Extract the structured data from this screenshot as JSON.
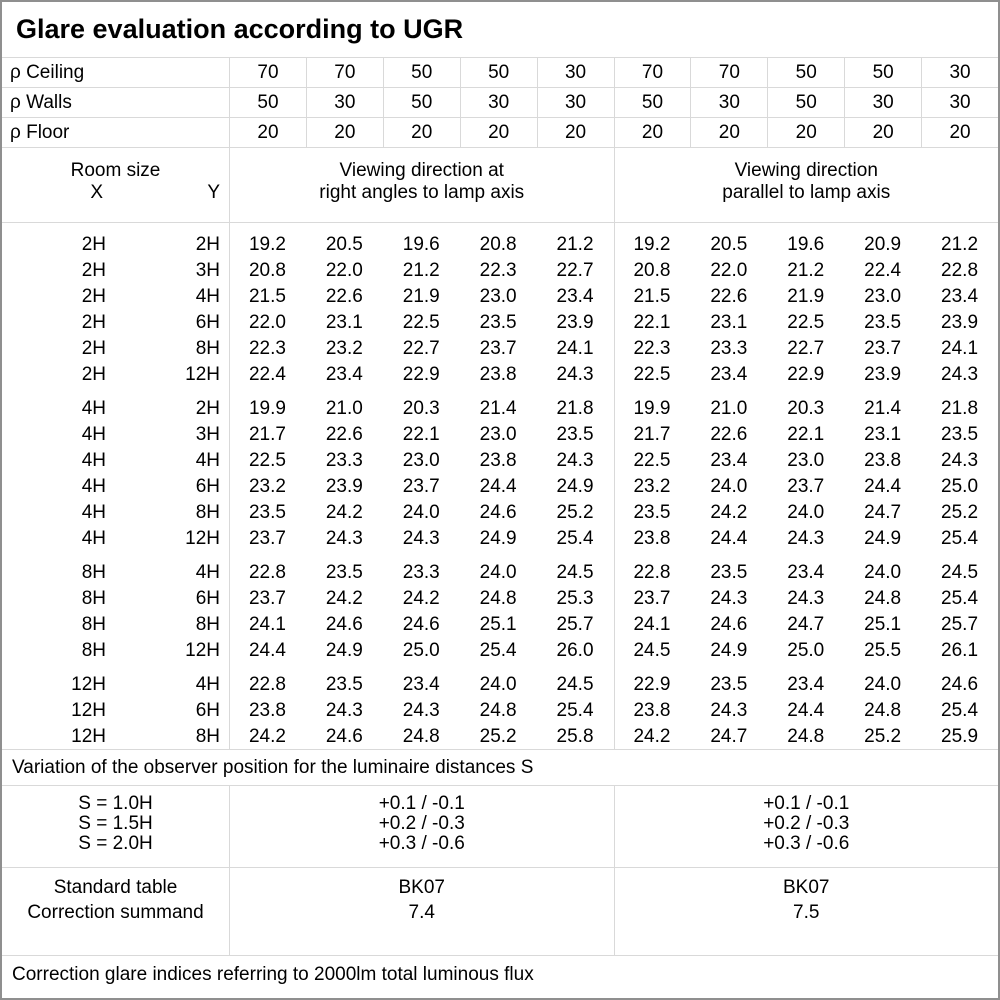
{
  "title": "Glare evaluation according to UGR",
  "reflectance_rows": [
    {
      "label": "ρ Ceiling",
      "values": [
        "70",
        "70",
        "50",
        "50",
        "30",
        "70",
        "70",
        "50",
        "50",
        "30"
      ]
    },
    {
      "label": "ρ Walls",
      "values": [
        "50",
        "30",
        "50",
        "30",
        "30",
        "50",
        "30",
        "50",
        "30",
        "30"
      ]
    },
    {
      "label": "ρ Floor",
      "values": [
        "20",
        "20",
        "20",
        "20",
        "20",
        "20",
        "20",
        "20",
        "20",
        "20"
      ]
    }
  ],
  "header": {
    "room_size": "Room size",
    "x": "X",
    "y": "Y",
    "right_angles_lines": [
      "Viewing direction at",
      "right angles to lamp axis"
    ],
    "parallel_lines": [
      "Viewing direction",
      "parallel to lamp axis"
    ]
  },
  "room_groups": [
    {
      "rows": [
        {
          "x": "2H",
          "y": "2H",
          "right_angles": [
            "19.2",
            "20.5",
            "19.6",
            "20.8",
            "21.2"
          ],
          "parallel": [
            "19.2",
            "20.5",
            "19.6",
            "20.9",
            "21.2"
          ]
        },
        {
          "x": "2H",
          "y": "3H",
          "right_angles": [
            "20.8",
            "22.0",
            "21.2",
            "22.3",
            "22.7"
          ],
          "parallel": [
            "20.8",
            "22.0",
            "21.2",
            "22.4",
            "22.8"
          ]
        },
        {
          "x": "2H",
          "y": "4H",
          "right_angles": [
            "21.5",
            "22.6",
            "21.9",
            "23.0",
            "23.4"
          ],
          "parallel": [
            "21.5",
            "22.6",
            "21.9",
            "23.0",
            "23.4"
          ]
        },
        {
          "x": "2H",
          "y": "6H",
          "right_angles": [
            "22.0",
            "23.1",
            "22.5",
            "23.5",
            "23.9"
          ],
          "parallel": [
            "22.1",
            "23.1",
            "22.5",
            "23.5",
            "23.9"
          ]
        },
        {
          "x": "2H",
          "y": "8H",
          "right_angles": [
            "22.3",
            "23.2",
            "22.7",
            "23.7",
            "24.1"
          ],
          "parallel": [
            "22.3",
            "23.3",
            "22.7",
            "23.7",
            "24.1"
          ]
        },
        {
          "x": "2H",
          "y": "12H",
          "right_angles": [
            "22.4",
            "23.4",
            "22.9",
            "23.8",
            "24.3"
          ],
          "parallel": [
            "22.5",
            "23.4",
            "22.9",
            "23.9",
            "24.3"
          ]
        }
      ]
    },
    {
      "rows": [
        {
          "x": "4H",
          "y": "2H",
          "right_angles": [
            "19.9",
            "21.0",
            "20.3",
            "21.4",
            "21.8"
          ],
          "parallel": [
            "19.9",
            "21.0",
            "20.3",
            "21.4",
            "21.8"
          ]
        },
        {
          "x": "4H",
          "y": "3H",
          "right_angles": [
            "21.7",
            "22.6",
            "22.1",
            "23.0",
            "23.5"
          ],
          "parallel": [
            "21.7",
            "22.6",
            "22.1",
            "23.1",
            "23.5"
          ]
        },
        {
          "x": "4H",
          "y": "4H",
          "right_angles": [
            "22.5",
            "23.3",
            "23.0",
            "23.8",
            "24.3"
          ],
          "parallel": [
            "22.5",
            "23.4",
            "23.0",
            "23.8",
            "24.3"
          ]
        },
        {
          "x": "4H",
          "y": "6H",
          "right_angles": [
            "23.2",
            "23.9",
            "23.7",
            "24.4",
            "24.9"
          ],
          "parallel": [
            "23.2",
            "24.0",
            "23.7",
            "24.4",
            "25.0"
          ]
        },
        {
          "x": "4H",
          "y": "8H",
          "right_angles": [
            "23.5",
            "24.2",
            "24.0",
            "24.6",
            "25.2"
          ],
          "parallel": [
            "23.5",
            "24.2",
            "24.0",
            "24.7",
            "25.2"
          ]
        },
        {
          "x": "4H",
          "y": "12H",
          "right_angles": [
            "23.7",
            "24.3",
            "24.3",
            "24.9",
            "25.4"
          ],
          "parallel": [
            "23.8",
            "24.4",
            "24.3",
            "24.9",
            "25.4"
          ]
        }
      ]
    },
    {
      "rows": [
        {
          "x": "8H",
          "y": "4H",
          "right_angles": [
            "22.8",
            "23.5",
            "23.3",
            "24.0",
            "24.5"
          ],
          "parallel": [
            "22.8",
            "23.5",
            "23.4",
            "24.0",
            "24.5"
          ]
        },
        {
          "x": "8H",
          "y": "6H",
          "right_angles": [
            "23.7",
            "24.2",
            "24.2",
            "24.8",
            "25.3"
          ],
          "parallel": [
            "23.7",
            "24.3",
            "24.3",
            "24.8",
            "25.4"
          ]
        },
        {
          "x": "8H",
          "y": "8H",
          "right_angles": [
            "24.1",
            "24.6",
            "24.6",
            "25.1",
            "25.7"
          ],
          "parallel": [
            "24.1",
            "24.6",
            "24.7",
            "25.1",
            "25.7"
          ]
        },
        {
          "x": "8H",
          "y": "12H",
          "right_angles": [
            "24.4",
            "24.9",
            "25.0",
            "25.4",
            "26.0"
          ],
          "parallel": [
            "24.5",
            "24.9",
            "25.0",
            "25.5",
            "26.1"
          ]
        }
      ]
    },
    {
      "rows": [
        {
          "x": "12H",
          "y": "4H",
          "right_angles": [
            "22.8",
            "23.5",
            "23.4",
            "24.0",
            "24.5"
          ],
          "parallel": [
            "22.9",
            "23.5",
            "23.4",
            "24.0",
            "24.6"
          ]
        },
        {
          "x": "12H",
          "y": "6H",
          "right_angles": [
            "23.8",
            "24.3",
            "24.3",
            "24.8",
            "25.4"
          ],
          "parallel": [
            "23.8",
            "24.3",
            "24.4",
            "24.8",
            "25.4"
          ]
        },
        {
          "x": "12H",
          "y": "8H",
          "right_angles": [
            "24.2",
            "24.6",
            "24.8",
            "25.2",
            "25.8"
          ],
          "parallel": [
            "24.2",
            "24.7",
            "24.8",
            "25.2",
            "25.9"
          ]
        }
      ]
    }
  ],
  "variation_note": "Variation of the observer position for the luminaire distances S",
  "s_section": {
    "labels": [
      "S = 1.0H",
      "S = 1.5H",
      "S = 2.0H"
    ],
    "right_angles": [
      "+0.1 / -0.1",
      "+0.2 / -0.3",
      "+0.3 / -0.6"
    ],
    "parallel": [
      "+0.1 / -0.1",
      "+0.2 / -0.3",
      "+0.3 / -0.6"
    ]
  },
  "bk_section": {
    "labels": [
      "Standard table",
      "Correction summand"
    ],
    "right_angles": [
      "BK07",
      "7.4"
    ],
    "parallel": [
      "BK07",
      "7.5"
    ]
  },
  "footer_note": "Correction glare indices referring to 2000lm total luminous flux",
  "colors": {
    "grid_line": "#d9d9d9",
    "outer_border": "#8f8f8f",
    "text": "#000000",
    "background": "#ffffff"
  }
}
